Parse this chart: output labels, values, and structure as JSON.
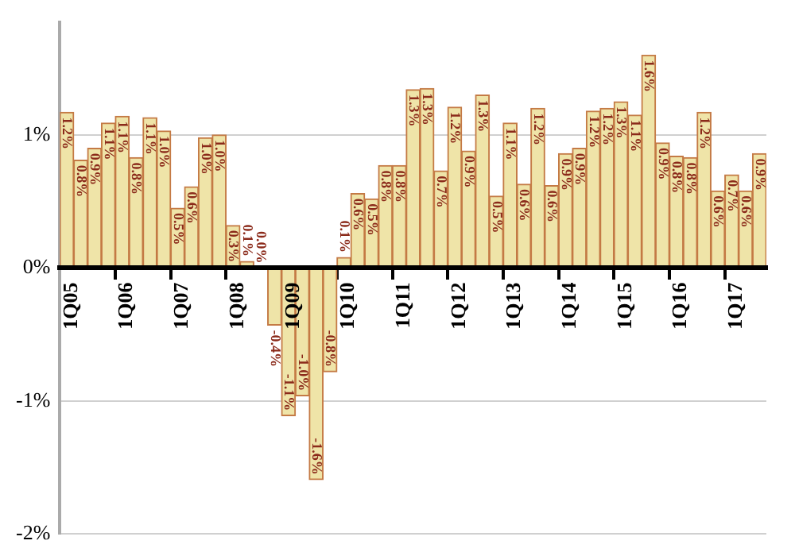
{
  "chart_data": {
    "type": "bar",
    "categories": [
      "1Q05",
      null,
      null,
      null,
      "1Q06",
      null,
      null,
      null,
      "1Q07",
      null,
      null,
      null,
      "1Q08",
      null,
      null,
      null,
      "1Q09",
      null,
      null,
      null,
      "1Q10",
      null,
      null,
      null,
      "1Q11",
      null,
      null,
      null,
      "1Q12",
      null,
      null,
      null,
      "1Q13",
      null,
      null,
      null,
      "1Q14",
      null,
      null,
      null,
      "1Q15",
      null,
      null,
      null,
      "1Q16",
      null,
      null,
      null,
      "1Q17",
      null,
      null
    ],
    "values": [
      1.17,
      0.81,
      0.9,
      1.09,
      1.14,
      0.83,
      1.13,
      1.03,
      0.45,
      0.61,
      0.98,
      1.0,
      0.32,
      0.05,
      0.0,
      -0.43,
      -1.11,
      -0.96,
      -1.59,
      -0.78,
      0.08,
      0.56,
      0.52,
      0.77,
      0.77,
      1.34,
      1.35,
      0.73,
      1.21,
      0.88,
      1.3,
      0.54,
      1.09,
      0.63,
      1.2,
      0.62,
      0.86,
      0.9,
      1.18,
      1.2,
      1.25,
      1.15,
      1.6,
      0.94,
      0.84,
      0.83,
      1.17,
      0.58,
      0.7,
      0.58,
      0.86
    ],
    "value_labels": [
      "1.2%",
      "0.8%",
      "0.9%",
      "1.1%",
      "1.1%",
      "0.8%",
      "1.1%",
      "1.0%",
      "0.5%",
      "0.6%",
      "1.0%",
      "1.0%",
      "0.3%",
      "0.1%",
      "0.0%",
      "-0.4%",
      "-1.1%",
      "-1.0%",
      "-1.6%",
      "-0.8%",
      "0.1%",
      "0.6%",
      "0.5%",
      "0.8%",
      "0.8%",
      "1.3%",
      "1.3%",
      "0.7%",
      "1.2%",
      "0.9%",
      "1.3%",
      "0.5%",
      "1.1%",
      "0.6%",
      "1.2%",
      "0.6%",
      "0.9%",
      "0.9%",
      "1.2%",
      "1.2%",
      "1.3%",
      "1.1%",
      "1.6%",
      "0.9%",
      "0.8%",
      "0.8%",
      "1.2%",
      "0.6%",
      "0.7%",
      "0.6%",
      "0.9%"
    ],
    "color": "#efe4a8",
    "ylim": [
      -2,
      1.85
    ],
    "yticks": [
      {
        "value": -2,
        "label": "-2%"
      },
      {
        "value": -1,
        "label": "-1%"
      },
      {
        "value": 0,
        "label": "0%"
      },
      {
        "value": 1,
        "label": "1%"
      }
    ],
    "grid": "y"
  }
}
